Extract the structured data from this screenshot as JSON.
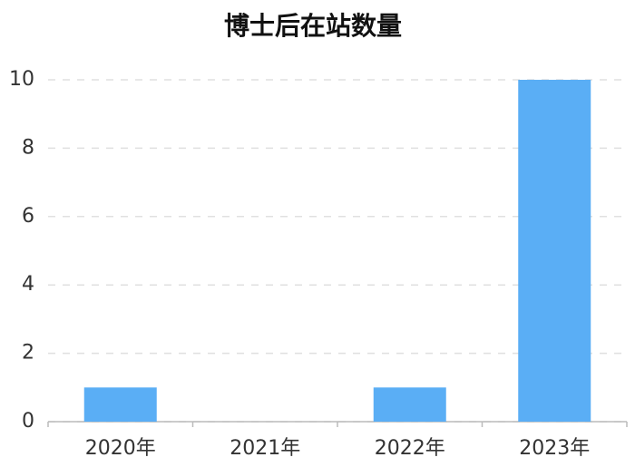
{
  "chart_data": {
    "type": "bar",
    "title": "博士后在站数量",
    "categories": [
      "2020年",
      "2021年",
      "2022年",
      "2023年"
    ],
    "values": [
      1,
      0,
      1,
      10
    ],
    "color": "#5aaef5",
    "ylim": [
      0,
      10
    ],
    "yticks": [
      0,
      2,
      4,
      6,
      8,
      10
    ],
    "grid": true
  }
}
